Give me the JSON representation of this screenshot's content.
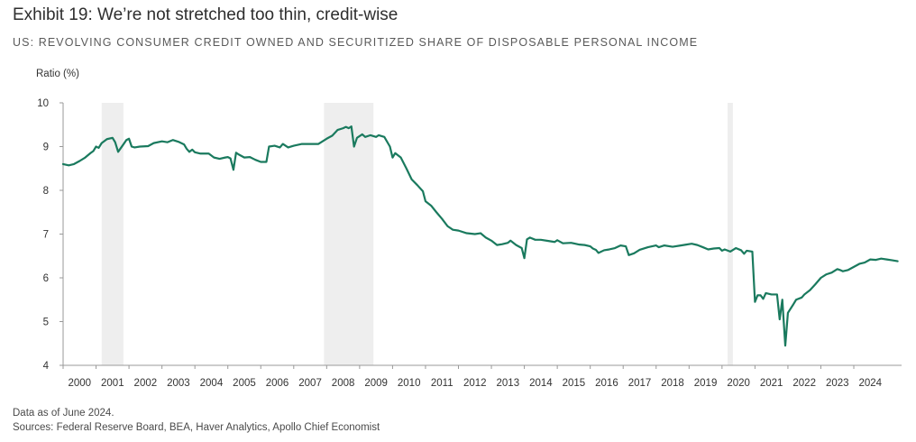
{
  "title": "Exhibit 19: We’re not stretched too thin, credit-wise",
  "subtitle": "US: REVOLVING CONSUMER CREDIT OWNED AND SECURITIZED SHARE OF DISPOSABLE PERSONAL INCOME",
  "notes": {
    "data_as_of": "Data as of June 2024.",
    "sources": "Sources: Federal Reserve Board, BEA, Haver Analytics, Apollo Chief Economist"
  },
  "colors": {
    "line": "#1a7a5e",
    "recession": "#eeeeee",
    "axis": "#999999"
  },
  "chart_data": {
    "type": "line",
    "title": "Exhibit 19: We’re not stretched too thin, credit-wise",
    "subtitle": "US: REVOLVING CONSUMER CREDIT OWNED AND SECURITIZED SHARE OF DISPOSABLE PERSONAL INCOME",
    "xlabel": "",
    "ylabel": "Ratio (%)",
    "ylim": [
      4,
      10
    ],
    "xlim": [
      2000.0,
      2024.5
    ],
    "yticks": [
      4,
      5,
      6,
      7,
      8,
      9,
      10
    ],
    "xticks": [
      "2000",
      "2001",
      "2002",
      "2003",
      "2004",
      "2005",
      "2006",
      "2007",
      "2008",
      "2009",
      "2010",
      "2011",
      "2012",
      "2013",
      "2014",
      "2015",
      "2016",
      "2017",
      "2018",
      "2019",
      "2020",
      "2021",
      "2022",
      "2023",
      "2024"
    ],
    "grid": false,
    "legend": "none",
    "recessions": [
      {
        "start": 2001.17,
        "end": 2001.83
      },
      {
        "start": 2007.92,
        "end": 2009.42
      },
      {
        "start": 2020.17,
        "end": 2020.33
      }
    ],
    "series": [
      {
        "values": [
          {
            "x": 2000.0,
            "y": 8.6
          },
          {
            "x": 2000.17,
            "y": 8.57
          },
          {
            "x": 2000.33,
            "y": 8.6
          },
          {
            "x": 2000.5,
            "y": 8.67
          },
          {
            "x": 2000.67,
            "y": 8.75
          },
          {
            "x": 2000.83,
            "y": 8.85
          },
          {
            "x": 2000.92,
            "y": 8.9
          },
          {
            "x": 2001.0,
            "y": 9.0
          },
          {
            "x": 2001.08,
            "y": 8.97
          },
          {
            "x": 2001.17,
            "y": 9.08
          },
          {
            "x": 2001.33,
            "y": 9.17
          },
          {
            "x": 2001.5,
            "y": 9.2
          },
          {
            "x": 2001.58,
            "y": 9.1
          },
          {
            "x": 2001.67,
            "y": 8.88
          },
          {
            "x": 2001.83,
            "y": 9.05
          },
          {
            "x": 2001.92,
            "y": 9.15
          },
          {
            "x": 2002.0,
            "y": 9.18
          },
          {
            "x": 2002.08,
            "y": 9.0
          },
          {
            "x": 2002.17,
            "y": 8.98
          },
          {
            "x": 2002.33,
            "y": 9.0
          },
          {
            "x": 2002.58,
            "y": 9.01
          },
          {
            "x": 2002.75,
            "y": 9.08
          },
          {
            "x": 2003.0,
            "y": 9.12
          },
          {
            "x": 2003.17,
            "y": 9.1
          },
          {
            "x": 2003.33,
            "y": 9.15
          },
          {
            "x": 2003.5,
            "y": 9.11
          },
          {
            "x": 2003.67,
            "y": 9.05
          },
          {
            "x": 2003.75,
            "y": 8.95
          },
          {
            "x": 2003.83,
            "y": 8.88
          },
          {
            "x": 2003.92,
            "y": 8.93
          },
          {
            "x": 2004.0,
            "y": 8.87
          },
          {
            "x": 2004.17,
            "y": 8.84
          },
          {
            "x": 2004.42,
            "y": 8.84
          },
          {
            "x": 2004.58,
            "y": 8.75
          },
          {
            "x": 2004.75,
            "y": 8.72
          },
          {
            "x": 2004.92,
            "y": 8.75
          },
          {
            "x": 2005.0,
            "y": 8.76
          },
          {
            "x": 2005.08,
            "y": 8.73
          },
          {
            "x": 2005.17,
            "y": 8.47
          },
          {
            "x": 2005.25,
            "y": 8.86
          },
          {
            "x": 2005.33,
            "y": 8.82
          },
          {
            "x": 2005.5,
            "y": 8.75
          },
          {
            "x": 2005.67,
            "y": 8.76
          },
          {
            "x": 2005.83,
            "y": 8.7
          },
          {
            "x": 2006.0,
            "y": 8.65
          },
          {
            "x": 2006.17,
            "y": 8.65
          },
          {
            "x": 2006.25,
            "y": 9.0
          },
          {
            "x": 2006.42,
            "y": 9.02
          },
          {
            "x": 2006.58,
            "y": 8.98
          },
          {
            "x": 2006.67,
            "y": 9.06
          },
          {
            "x": 2006.83,
            "y": 8.98
          },
          {
            "x": 2007.0,
            "y": 9.02
          },
          {
            "x": 2007.25,
            "y": 9.06
          },
          {
            "x": 2007.5,
            "y": 9.06
          },
          {
            "x": 2007.75,
            "y": 9.06
          },
          {
            "x": 2008.0,
            "y": 9.18
          },
          {
            "x": 2008.17,
            "y": 9.25
          },
          {
            "x": 2008.33,
            "y": 9.38
          },
          {
            "x": 2008.5,
            "y": 9.42
          },
          {
            "x": 2008.58,
            "y": 9.45
          },
          {
            "x": 2008.67,
            "y": 9.42
          },
          {
            "x": 2008.75,
            "y": 9.46
          },
          {
            "x": 2008.83,
            "y": 9.0
          },
          {
            "x": 2008.92,
            "y": 9.2
          },
          {
            "x": 2009.08,
            "y": 9.28
          },
          {
            "x": 2009.17,
            "y": 9.22
          },
          {
            "x": 2009.33,
            "y": 9.26
          },
          {
            "x": 2009.5,
            "y": 9.22
          },
          {
            "x": 2009.58,
            "y": 9.26
          },
          {
            "x": 2009.75,
            "y": 9.22
          },
          {
            "x": 2009.92,
            "y": 9.0
          },
          {
            "x": 2010.0,
            "y": 8.75
          },
          {
            "x": 2010.08,
            "y": 8.85
          },
          {
            "x": 2010.25,
            "y": 8.75
          },
          {
            "x": 2010.42,
            "y": 8.5
          },
          {
            "x": 2010.58,
            "y": 8.25
          },
          {
            "x": 2010.75,
            "y": 8.12
          },
          {
            "x": 2010.92,
            "y": 7.98
          },
          {
            "x": 2011.0,
            "y": 7.75
          },
          {
            "x": 2011.17,
            "y": 7.65
          },
          {
            "x": 2011.33,
            "y": 7.5
          },
          {
            "x": 2011.5,
            "y": 7.35
          },
          {
            "x": 2011.67,
            "y": 7.18
          },
          {
            "x": 2011.83,
            "y": 7.1
          },
          {
            "x": 2012.0,
            "y": 7.08
          },
          {
            "x": 2012.25,
            "y": 7.02
          },
          {
            "x": 2012.5,
            "y": 7.0
          },
          {
            "x": 2012.67,
            "y": 7.02
          },
          {
            "x": 2012.83,
            "y": 6.92
          },
          {
            "x": 2013.0,
            "y": 6.85
          },
          {
            "x": 2013.17,
            "y": 6.75
          },
          {
            "x": 2013.33,
            "y": 6.77
          },
          {
            "x": 2013.5,
            "y": 6.8
          },
          {
            "x": 2013.58,
            "y": 6.85
          },
          {
            "x": 2013.75,
            "y": 6.75
          },
          {
            "x": 2013.92,
            "y": 6.68
          },
          {
            "x": 2014.0,
            "y": 6.45
          },
          {
            "x": 2014.08,
            "y": 6.88
          },
          {
            "x": 2014.17,
            "y": 6.92
          },
          {
            "x": 2014.33,
            "y": 6.87
          },
          {
            "x": 2014.5,
            "y": 6.87
          },
          {
            "x": 2014.75,
            "y": 6.84
          },
          {
            "x": 2014.92,
            "y": 6.82
          },
          {
            "x": 2015.0,
            "y": 6.86
          },
          {
            "x": 2015.17,
            "y": 6.79
          },
          {
            "x": 2015.42,
            "y": 6.8
          },
          {
            "x": 2015.67,
            "y": 6.76
          },
          {
            "x": 2015.83,
            "y": 6.75
          },
          {
            "x": 2016.0,
            "y": 6.72
          },
          {
            "x": 2016.08,
            "y": 6.67
          },
          {
            "x": 2016.17,
            "y": 6.64
          },
          {
            "x": 2016.25,
            "y": 6.57
          },
          {
            "x": 2016.42,
            "y": 6.63
          },
          {
            "x": 2016.58,
            "y": 6.65
          },
          {
            "x": 2016.75,
            "y": 6.68
          },
          {
            "x": 2016.92,
            "y": 6.74
          },
          {
            "x": 2017.08,
            "y": 6.72
          },
          {
            "x": 2017.17,
            "y": 6.52
          },
          {
            "x": 2017.33,
            "y": 6.56
          },
          {
            "x": 2017.5,
            "y": 6.64
          },
          {
            "x": 2017.75,
            "y": 6.7
          },
          {
            "x": 2018.0,
            "y": 6.74
          },
          {
            "x": 2018.08,
            "y": 6.7
          },
          {
            "x": 2018.25,
            "y": 6.74
          },
          {
            "x": 2018.5,
            "y": 6.71
          },
          {
            "x": 2018.75,
            "y": 6.74
          },
          {
            "x": 2018.92,
            "y": 6.76
          },
          {
            "x": 2019.08,
            "y": 6.78
          },
          {
            "x": 2019.25,
            "y": 6.75
          },
          {
            "x": 2019.42,
            "y": 6.7
          },
          {
            "x": 2019.58,
            "y": 6.65
          },
          {
            "x": 2019.75,
            "y": 6.67
          },
          {
            "x": 2019.92,
            "y": 6.68
          },
          {
            "x": 2020.0,
            "y": 6.62
          },
          {
            "x": 2020.08,
            "y": 6.65
          },
          {
            "x": 2020.25,
            "y": 6.6
          },
          {
            "x": 2020.42,
            "y": 6.68
          },
          {
            "x": 2020.58,
            "y": 6.63
          },
          {
            "x": 2020.67,
            "y": 6.55
          },
          {
            "x": 2020.75,
            "y": 6.62
          },
          {
            "x": 2020.92,
            "y": 6.6
          },
          {
            "x": 2021.0,
            "y": 5.45
          },
          {
            "x": 2021.08,
            "y": 5.6
          },
          {
            "x": 2021.17,
            "y": 5.6
          },
          {
            "x": 2021.25,
            "y": 5.52
          },
          {
            "x": 2021.33,
            "y": 5.65
          },
          {
            "x": 2021.5,
            "y": 5.62
          },
          {
            "x": 2021.67,
            "y": 5.62
          },
          {
            "x": 2021.75,
            "y": 5.05
          },
          {
            "x": 2021.83,
            "y": 5.5
          },
          {
            "x": 2021.92,
            "y": 4.45
          },
          {
            "x": 2022.0,
            "y": 5.2
          },
          {
            "x": 2022.17,
            "y": 5.4
          },
          {
            "x": 2022.25,
            "y": 5.5
          },
          {
            "x": 2022.42,
            "y": 5.55
          },
          {
            "x": 2022.5,
            "y": 5.62
          },
          {
            "x": 2022.67,
            "y": 5.72
          },
          {
            "x": 2022.83,
            "y": 5.85
          },
          {
            "x": 2023.0,
            "y": 6.0
          },
          {
            "x": 2023.17,
            "y": 6.08
          },
          {
            "x": 2023.33,
            "y": 6.12
          },
          {
            "x": 2023.5,
            "y": 6.2
          },
          {
            "x": 2023.58,
            "y": 6.18
          },
          {
            "x": 2023.67,
            "y": 6.15
          },
          {
            "x": 2023.83,
            "y": 6.18
          },
          {
            "x": 2024.0,
            "y": 6.25
          },
          {
            "x": 2024.17,
            "y": 6.32
          },
          {
            "x": 2024.33,
            "y": 6.35
          },
          {
            "x": 2024.5,
            "y": 6.42
          },
          {
            "x": 2024.67,
            "y": 6.41
          },
          {
            "x": 2024.83,
            "y": 6.44
          },
          {
            "x": 2025.0,
            "y": 6.42
          },
          {
            "x": 2025.17,
            "y": 6.4
          },
          {
            "x": 2025.33,
            "y": 6.38
          }
        ]
      }
    ]
  }
}
